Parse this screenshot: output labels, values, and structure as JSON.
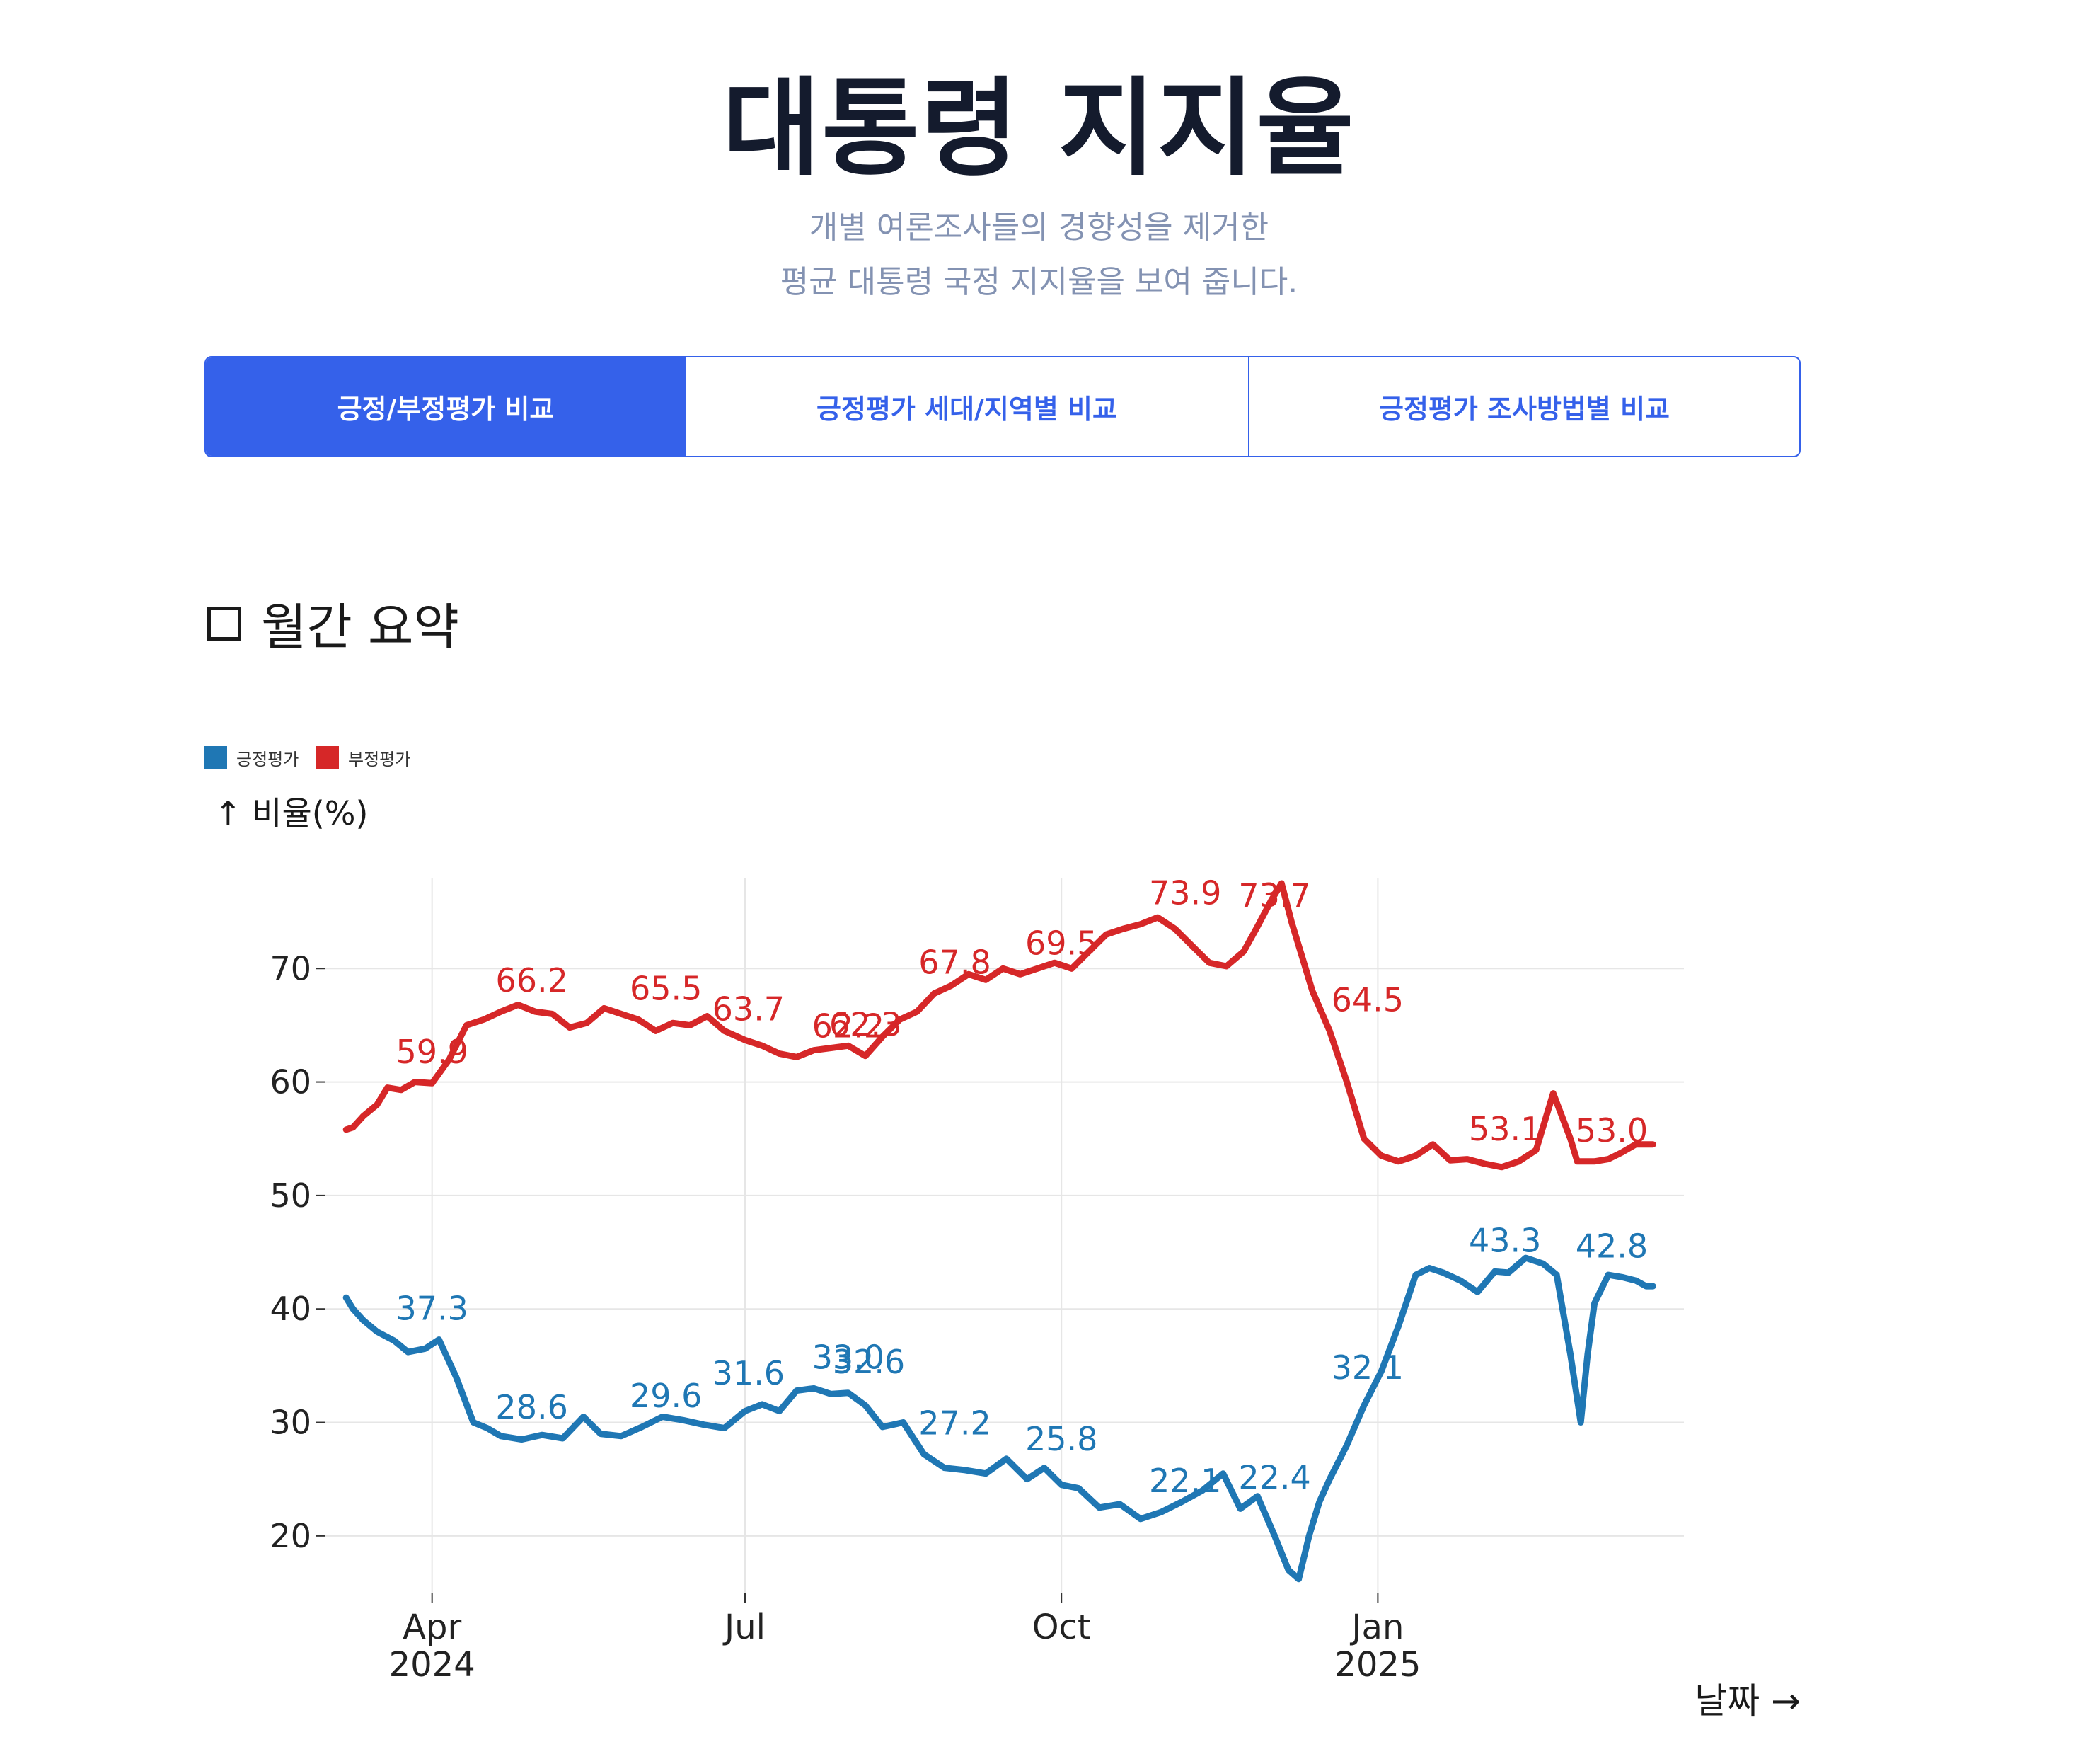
{
  "header": {
    "title": "대통령 지지율",
    "subtitle_line1": "개별 여론조사들의 경향성을 제거한",
    "subtitle_line2": "평균 대통령 국정 지지율을 보여 줍니다."
  },
  "tabs": [
    {
      "label": "긍정/부정평가 비교",
      "active": true
    },
    {
      "label": "긍정평가 세대/지역별 비교",
      "active": false
    },
    {
      "label": "긍정평가 조사방법별 비교",
      "active": false
    }
  ],
  "section": {
    "title": "월간 요약",
    "checkbox_checked": false
  },
  "colors": {
    "accent": "#3561ea",
    "positive": "#1f77b4",
    "negative": "#d62728"
  },
  "chart_data": {
    "type": "line",
    "ylabel": "↑ 비율(%)",
    "xlabel": "날짜 →",
    "ylim": [
      15,
      78
    ],
    "xlim": [
      "2024-03-01",
      "2025-03-31"
    ],
    "yticks": [
      20,
      30,
      40,
      50,
      60,
      70
    ],
    "xticks": [
      {
        "date": "2024-04-01",
        "label": "Apr",
        "year": "2024"
      },
      {
        "date": "2024-07-01",
        "label": "Jul",
        "year": ""
      },
      {
        "date": "2024-10-01",
        "label": "Oct",
        "year": ""
      },
      {
        "date": "2025-01-01",
        "label": "Jan",
        "year": "2025"
      }
    ],
    "grid": true,
    "legend_position": "top-left",
    "series": [
      {
        "name": "긍정평가",
        "color": "#1f77b4",
        "x": [
          "2024-03-07",
          "2024-03-09",
          "2024-03-12",
          "2024-03-16",
          "2024-03-21",
          "2024-03-25",
          "2024-03-30",
          "2024-04-03",
          "2024-04-08",
          "2024-04-13",
          "2024-04-17",
          "2024-04-21",
          "2024-04-27",
          "2024-05-03",
          "2024-05-09",
          "2024-05-15",
          "2024-05-20",
          "2024-05-26",
          "2024-06-01",
          "2024-06-07",
          "2024-06-13",
          "2024-06-19",
          "2024-06-25",
          "2024-07-01",
          "2024-07-06",
          "2024-07-11",
          "2024-07-16",
          "2024-07-21",
          "2024-07-26",
          "2024-07-31",
          "2024-08-05",
          "2024-08-10",
          "2024-08-16",
          "2024-08-22",
          "2024-08-28",
          "2024-09-03",
          "2024-09-09",
          "2024-09-15",
          "2024-09-21",
          "2024-09-26",
          "2024-10-01",
          "2024-10-06",
          "2024-10-12",
          "2024-10-18",
          "2024-10-24",
          "2024-10-30",
          "2024-11-05",
          "2024-11-11",
          "2024-11-17",
          "2024-11-22",
          "2024-11-27",
          "2024-12-02",
          "2024-12-06",
          "2024-12-09",
          "2024-12-12",
          "2024-12-15",
          "2024-12-18",
          "2024-12-23",
          "2024-12-28",
          "2025-01-02",
          "2025-01-07",
          "2025-01-12",
          "2025-01-16",
          "2025-01-20",
          "2025-01-25",
          "2025-01-30",
          "2025-02-04",
          "2025-02-08",
          "2025-02-13",
          "2025-02-18",
          "2025-02-22",
          "2025-02-26",
          "2025-03-01",
          "2025-03-03",
          "2025-03-05",
          "2025-03-09",
          "2025-03-13",
          "2025-03-17",
          "2025-03-20",
          "2025-03-22"
        ],
        "y": [
          41,
          40,
          39,
          38,
          37.2,
          36.2,
          36.5,
          37.3,
          34,
          30,
          29.5,
          28.8,
          28.5,
          28.9,
          28.6,
          30.5,
          29,
          28.8,
          29.6,
          30.5,
          30.2,
          29.8,
          29.5,
          31,
          31.6,
          31,
          32.8,
          33,
          32.5,
          32.6,
          31.5,
          29.6,
          30,
          27.2,
          26,
          25.8,
          25.5,
          26.8,
          25,
          26,
          24.5,
          24.2,
          22.5,
          22.8,
          21.5,
          22.1,
          23,
          24,
          25.5,
          22.4,
          23.5,
          20,
          17,
          16.2,
          20,
          23,
          25,
          28,
          31.5,
          34.5,
          38.5,
          43,
          43.6,
          43.2,
          42.5,
          41.5,
          43.3,
          43.2,
          44.5,
          44,
          43,
          36,
          30,
          36,
          40.5,
          43,
          42.8,
          42.5,
          42,
          42
        ]
      },
      {
        "name": "부정평가",
        "color": "#d62728",
        "x": [
          "2024-03-07",
          "2024-03-09",
          "2024-03-12",
          "2024-03-16",
          "2024-03-19",
          "2024-03-23",
          "2024-03-27",
          "2024-04-01",
          "2024-04-06",
          "2024-04-11",
          "2024-04-16",
          "2024-04-21",
          "2024-04-26",
          "2024-05-01",
          "2024-05-06",
          "2024-05-11",
          "2024-05-16",
          "2024-05-21",
          "2024-05-26",
          "2024-05-31",
          "2024-06-05",
          "2024-06-10",
          "2024-06-15",
          "2024-06-20",
          "2024-06-25",
          "2024-07-01",
          "2024-07-06",
          "2024-07-11",
          "2024-07-16",
          "2024-07-21",
          "2024-07-26",
          "2024-07-31",
          "2024-08-05",
          "2024-08-10",
          "2024-08-15",
          "2024-08-20",
          "2024-08-25",
          "2024-08-30",
          "2024-09-04",
          "2024-09-09",
          "2024-09-14",
          "2024-09-19",
          "2024-09-24",
          "2024-09-29",
          "2024-10-04",
          "2024-10-09",
          "2024-10-14",
          "2024-10-19",
          "2024-10-24",
          "2024-10-29",
          "2024-11-03",
          "2024-11-08",
          "2024-11-13",
          "2024-11-18",
          "2024-11-23",
          "2024-11-27",
          "2024-12-01",
          "2024-12-04",
          "2024-12-07",
          "2024-12-10",
          "2024-12-13",
          "2024-12-18",
          "2024-12-23",
          "2024-12-28",
          "2025-01-02",
          "2025-01-07",
          "2025-01-12",
          "2025-01-17",
          "2025-01-22",
          "2025-01-27",
          "2025-02-01",
          "2025-02-06",
          "2025-02-11",
          "2025-02-16",
          "2025-02-21",
          "2025-02-26",
          "2025-02-28",
          "2025-03-02",
          "2025-03-05",
          "2025-03-09",
          "2025-03-13",
          "2025-03-17",
          "2025-03-22"
        ],
        "y": [
          55.8,
          56,
          57,
          58,
          59.5,
          59.3,
          60,
          59.9,
          62,
          65,
          65.5,
          66.2,
          66.8,
          66.2,
          66,
          64.8,
          65.2,
          66.5,
          66,
          65.5,
          64.5,
          65.2,
          65,
          65.8,
          64.5,
          63.7,
          63.2,
          62.5,
          62.2,
          62.8,
          63,
          63.2,
          62.3,
          64,
          65.5,
          66.2,
          67.8,
          68.5,
          69.5,
          69,
          70,
          69.5,
          70,
          70.5,
          70,
          71.5,
          73,
          73.5,
          73.9,
          74.5,
          73.5,
          72,
          70.5,
          70.2,
          71.5,
          73.7,
          76,
          77.5,
          74,
          71,
          68,
          64.5,
          60,
          55,
          53.5,
          53,
          53.5,
          54.5,
          53.1,
          53.2,
          52.8,
          52.5,
          53,
          54,
          59,
          55,
          53,
          53,
          53,
          53.2,
          53.8,
          54.5,
          54.5
        ]
      }
    ],
    "annotations": [
      {
        "series": 1,
        "date": "2024-04-01",
        "value": 59.9,
        "label": "59.9"
      },
      {
        "series": 1,
        "date": "2024-04-30",
        "value": 66.2,
        "label": "66.2"
      },
      {
        "series": 1,
        "date": "2024-06-08",
        "value": 65.5,
        "label": "65.5"
      },
      {
        "series": 1,
        "date": "2024-07-02",
        "value": 63.7,
        "label": "63.7"
      },
      {
        "series": 1,
        "date": "2024-07-31",
        "value": 62.2,
        "label": "62.2"
      },
      {
        "series": 1,
        "date": "2024-08-05",
        "value": 62.3,
        "label": "62.3"
      },
      {
        "series": 1,
        "date": "2024-08-31",
        "value": 67.8,
        "label": "67.8"
      },
      {
        "series": 1,
        "date": "2024-10-01",
        "value": 69.5,
        "label": "69.5"
      },
      {
        "series": 1,
        "date": "2024-11-06",
        "value": 73.9,
        "label": "73.9"
      },
      {
        "series": 1,
        "date": "2024-12-02",
        "value": 73.7,
        "label": "73.7"
      },
      {
        "series": 1,
        "date": "2024-12-29",
        "value": 64.5,
        "label": "64.5"
      },
      {
        "series": 1,
        "date": "2025-02-07",
        "value": 53.1,
        "label": "53.1"
      },
      {
        "series": 1,
        "date": "2025-03-10",
        "value": 53.0,
        "label": "53.0"
      },
      {
        "series": 0,
        "date": "2024-04-01",
        "value": 37.3,
        "label": "37.3"
      },
      {
        "series": 0,
        "date": "2024-04-30",
        "value": 28.6,
        "label": "28.6"
      },
      {
        "series": 0,
        "date": "2024-06-08",
        "value": 29.6,
        "label": "29.6"
      },
      {
        "series": 0,
        "date": "2024-07-02",
        "value": 31.6,
        "label": "31.6"
      },
      {
        "series": 0,
        "date": "2024-07-31",
        "value": 33.0,
        "label": "33.0"
      },
      {
        "series": 0,
        "date": "2024-08-06",
        "value": 32.6,
        "label": "32.6"
      },
      {
        "series": 0,
        "date": "2024-08-31",
        "value": 27.2,
        "label": "27.2"
      },
      {
        "series": 0,
        "date": "2024-10-01",
        "value": 25.8,
        "label": "25.8"
      },
      {
        "series": 0,
        "date": "2024-11-06",
        "value": 22.1,
        "label": "22.1"
      },
      {
        "series": 0,
        "date": "2024-12-02",
        "value": 22.4,
        "label": "22.4"
      },
      {
        "series": 0,
        "date": "2024-12-29",
        "value": 32.1,
        "label": "32.1"
      },
      {
        "series": 0,
        "date": "2025-02-07",
        "value": 43.3,
        "label": "43.3"
      },
      {
        "series": 0,
        "date": "2025-03-10",
        "value": 42.8,
        "label": "42.8"
      }
    ]
  }
}
